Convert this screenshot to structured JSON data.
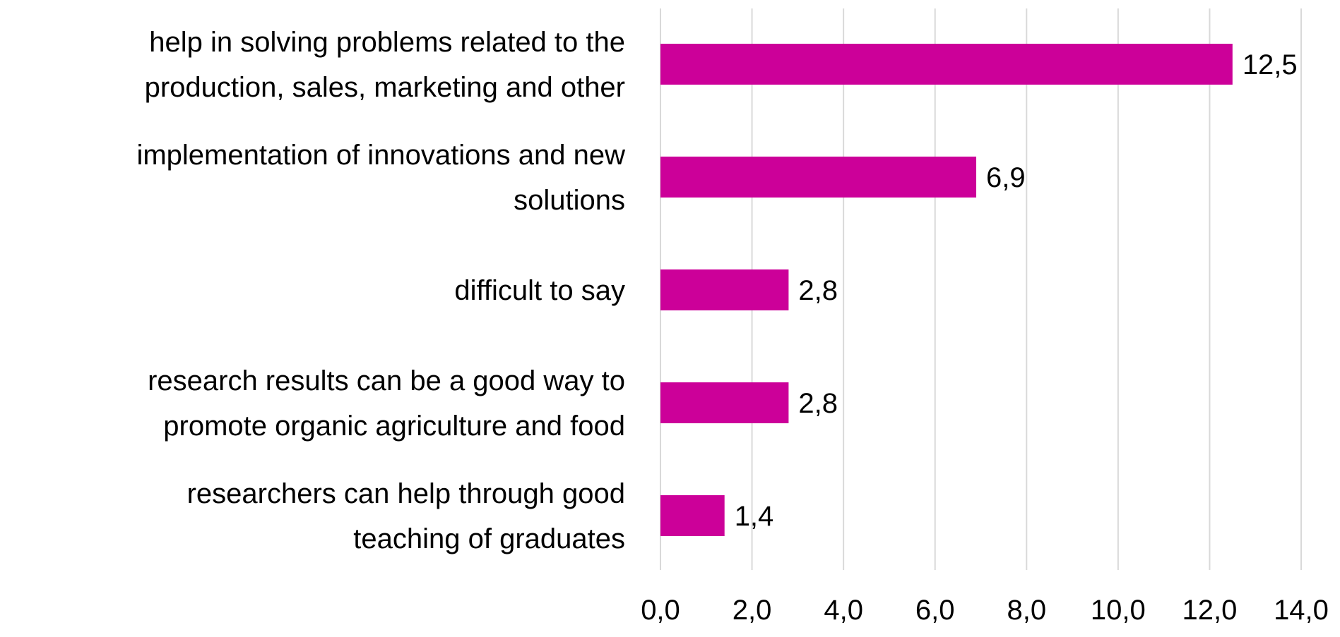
{
  "chart_data": {
    "type": "bar",
    "orientation": "horizontal",
    "categories": [
      [
        "help in solving problems related to the",
        "production, sales, marketing and other"
      ],
      [
        "implementation of innovations and new",
        "solutions"
      ],
      [
        "difficult to say"
      ],
      [
        "research results can be a good way to",
        "promote organic agriculture and food"
      ],
      [
        "researchers can help through good",
        "teaching of graduates"
      ]
    ],
    "values": [
      12.5,
      6.9,
      2.8,
      2.8,
      1.4
    ],
    "value_labels": [
      "12,5",
      "6,9",
      "2,8",
      "2,8",
      "1,4"
    ],
    "xlim": [
      0,
      14
    ],
    "x_ticks": [
      0,
      2,
      4,
      6,
      8,
      10,
      12,
      14
    ],
    "x_tick_labels": [
      "0,0",
      "2,0",
      "4,0",
      "6,0",
      "8,0",
      "10,0",
      "12,0",
      "14,0"
    ],
    "grid": true,
    "bar_color": "#cc0099",
    "title": "",
    "xlabel": "",
    "ylabel": ""
  }
}
